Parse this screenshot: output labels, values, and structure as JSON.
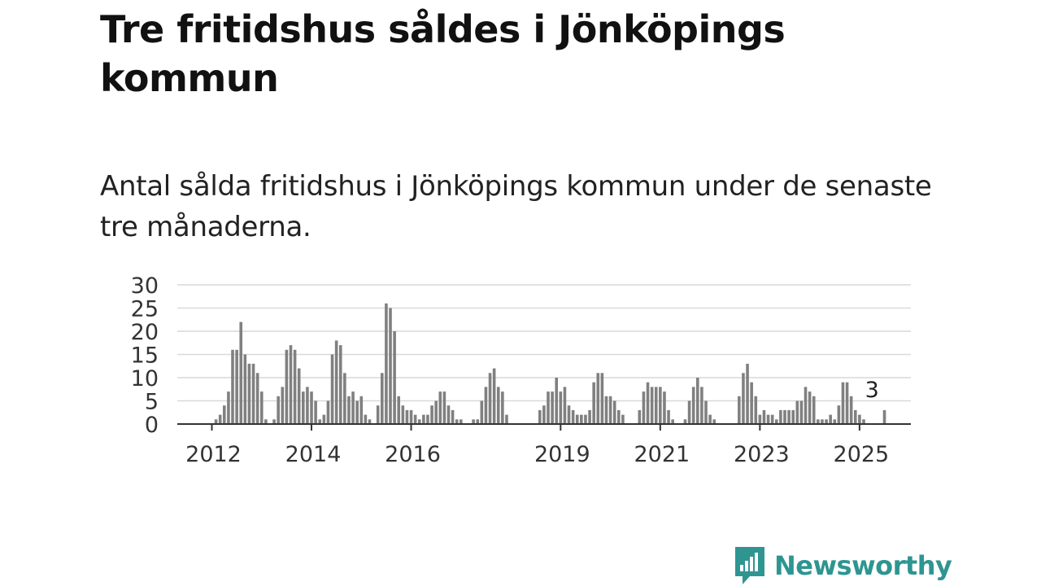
{
  "title": "Tre fritidshus såldes i Jönköpings kommun",
  "subtitle": "Antal sålda fritidshus i Jönköpings kommun under de senaste tre månaderna.",
  "brand": {
    "name": "Newsworthy",
    "color": "#2e9591"
  },
  "colors": {
    "bar": "#808080",
    "highlight": "#2e9591",
    "grid": "#d9d9d9",
    "axis": "#333333"
  },
  "chart_data": {
    "type": "bar",
    "title": "",
    "xlabel": "",
    "ylabel": "",
    "ylim": [
      0,
      30
    ],
    "y_ticks": [
      "0",
      "5",
      "10",
      "15",
      "20",
      "25",
      "30"
    ],
    "x_ticks": [
      "2012",
      "2014",
      "2016",
      "2019",
      "2021",
      "2023",
      "2025"
    ],
    "grid": true,
    "start": "2012-01",
    "highlight": {
      "month": "2025-04",
      "value": 3,
      "label": "3"
    },
    "series": [
      {
        "values": [
          0,
          1,
          2,
          4,
          7,
          16,
          16,
          22,
          15,
          13,
          13,
          11,
          7,
          1,
          0,
          1,
          6,
          8,
          16,
          17,
          16,
          12,
          7,
          8,
          7,
          5,
          1,
          2,
          5,
          15,
          18,
          17,
          11,
          6,
          7,
          5,
          6,
          2,
          1,
          0,
          4,
          11,
          26,
          25,
          20,
          6,
          4,
          3,
          3,
          2,
          1,
          2,
          2,
          4,
          5,
          7,
          7,
          4,
          3,
          1,
          1,
          0,
          0,
          1,
          1,
          5,
          8,
          11,
          12,
          8,
          7,
          2,
          0,
          0,
          0,
          0,
          0,
          0,
          0,
          3,
          4,
          7,
          7,
          10,
          7,
          8,
          4,
          3,
          2,
          2,
          2,
          3,
          9,
          11,
          11,
          6,
          6,
          5,
          3,
          2,
          0,
          0,
          0,
          3,
          7,
          9,
          8,
          8,
          8,
          7,
          3,
          1,
          0,
          0,
          1,
          5,
          8,
          10,
          8,
          5,
          2,
          1,
          0,
          0,
          0,
          0,
          0,
          6,
          11,
          13,
          9,
          6,
          2,
          3,
          2,
          2,
          1,
          3,
          3,
          3,
          3,
          5,
          5,
          8,
          7,
          6,
          1,
          1,
          1,
          2,
          1,
          4,
          9,
          9,
          6,
          3,
          2,
          1,
          0,
          0,
          0,
          0,
          3
        ]
      }
    ]
  }
}
